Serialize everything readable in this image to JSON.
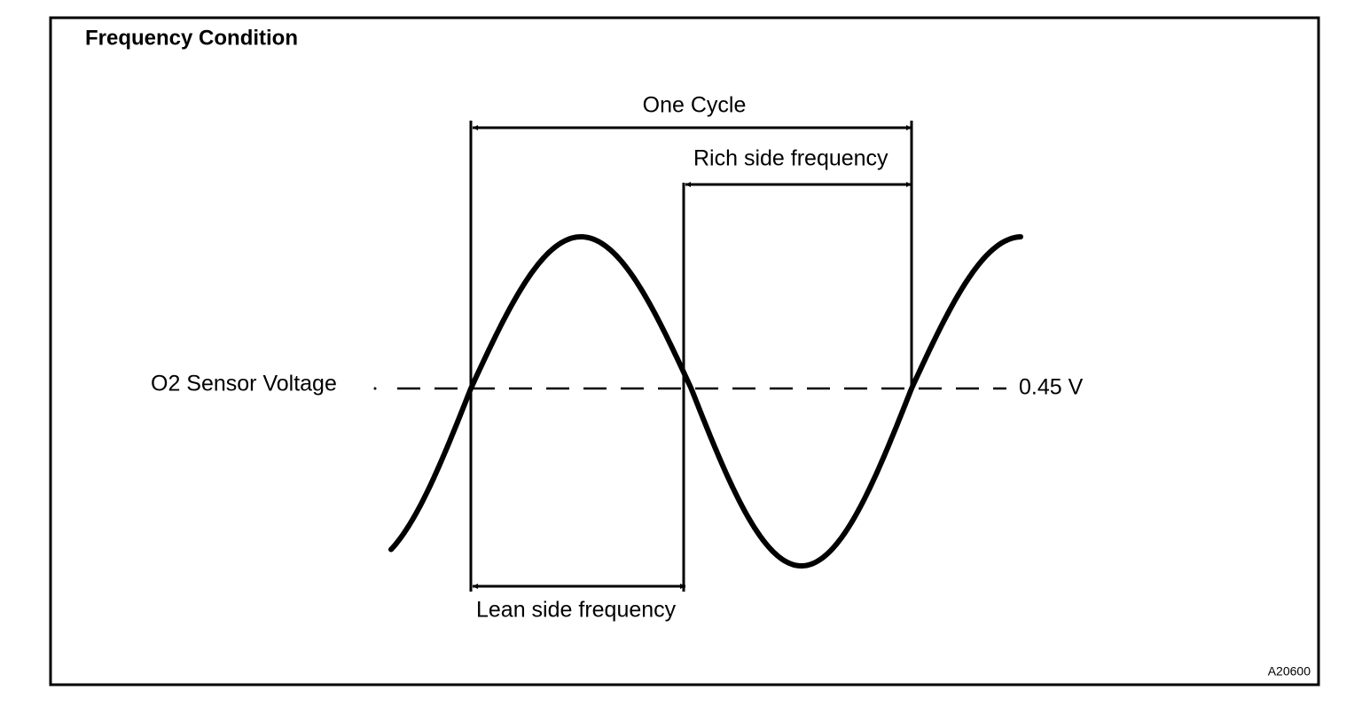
{
  "title": "Frequency Condition",
  "labels": {
    "one_cycle": "One Cycle",
    "rich": "Rich side frequency",
    "lean": "Lean side frequency",
    "sensor": "O2 Sensor Voltage",
    "threshold": "0.45 V"
  },
  "figure_id": "A20600"
}
